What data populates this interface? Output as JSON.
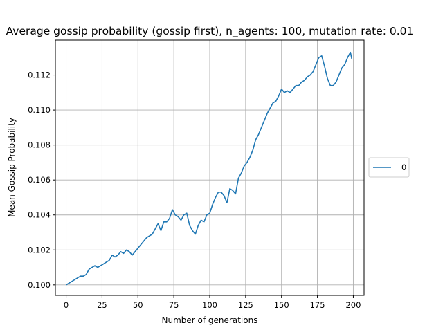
{
  "chart_data": {
    "type": "line",
    "title": "Average gossip probability (gossip first), n_agents: 100, mutation rate: 0.01",
    "xlabel": "Number of generations",
    "ylabel": "Mean Gossip Probability",
    "xlim": [
      -7.5,
      207.5
    ],
    "ylim": [
      0.0994,
      0.114
    ],
    "xticks": [
      0,
      25,
      50,
      75,
      100,
      125,
      150,
      175,
      200
    ],
    "yticks": [
      0.1,
      0.102,
      0.104,
      0.106,
      0.108,
      0.11,
      0.112
    ],
    "grid": true,
    "legend": {
      "placement": "center-right-outside",
      "entries": [
        "0"
      ]
    },
    "colors": {
      "series": "#1f77b4"
    },
    "series": [
      {
        "name": "0",
        "x": [
          0,
          2,
          4,
          6,
          8,
          10,
          12,
          14,
          16,
          18,
          20,
          22,
          24,
          26,
          28,
          30,
          32,
          34,
          36,
          38,
          40,
          42,
          44,
          46,
          48,
          50,
          52,
          54,
          56,
          58,
          60,
          62,
          64,
          66,
          68,
          70,
          72,
          74,
          76,
          78,
          80,
          82,
          84,
          86,
          88,
          90,
          92,
          94,
          96,
          98,
          100,
          102,
          104,
          106,
          108,
          110,
          112,
          114,
          116,
          118,
          120,
          122,
          124,
          126,
          128,
          130,
          132,
          134,
          136,
          138,
          140,
          142,
          144,
          146,
          148,
          150,
          152,
          154,
          156,
          158,
          160,
          162,
          164,
          166,
          168,
          170,
          172,
          174,
          176,
          178,
          180,
          182,
          184,
          186,
          188,
          190,
          192,
          194,
          196,
          198,
          199
        ],
        "values": [
          0.1,
          0.1001,
          0.1002,
          0.1003,
          0.1004,
          0.1005,
          0.1005,
          0.1006,
          0.1009,
          0.101,
          0.1011,
          0.101,
          0.1011,
          0.1012,
          0.1013,
          0.1014,
          0.1017,
          0.1016,
          0.1017,
          0.1019,
          0.1018,
          0.102,
          0.1019,
          0.1017,
          0.1019,
          0.1021,
          0.1023,
          0.1025,
          0.1027,
          0.1028,
          0.1029,
          0.1032,
          0.1035,
          0.1031,
          0.1036,
          0.1036,
          0.1038,
          0.1043,
          0.104,
          0.1039,
          0.1037,
          0.104,
          0.1041,
          0.1034,
          0.1031,
          0.1029,
          0.1034,
          0.1037,
          0.1036,
          0.104,
          0.1041,
          0.1046,
          0.105,
          0.1053,
          0.1053,
          0.1051,
          0.1047,
          0.1055,
          0.1054,
          0.1052,
          0.1061,
          0.1064,
          0.1068,
          0.107,
          0.1073,
          0.1077,
          0.1083,
          0.1086,
          0.109,
          0.1094,
          0.1098,
          0.1101,
          0.1104,
          0.1105,
          0.1108,
          0.1112,
          0.111,
          0.1111,
          0.111,
          0.1112,
          0.1114,
          0.1114,
          0.1116,
          0.1117,
          0.1119,
          0.112,
          0.1122,
          0.1126,
          0.113,
          0.1131,
          0.1125,
          0.1118,
          0.1114,
          0.1114,
          0.1116,
          0.112,
          0.1124,
          0.1126,
          0.113,
          0.1133,
          0.1129
        ]
      }
    ]
  }
}
